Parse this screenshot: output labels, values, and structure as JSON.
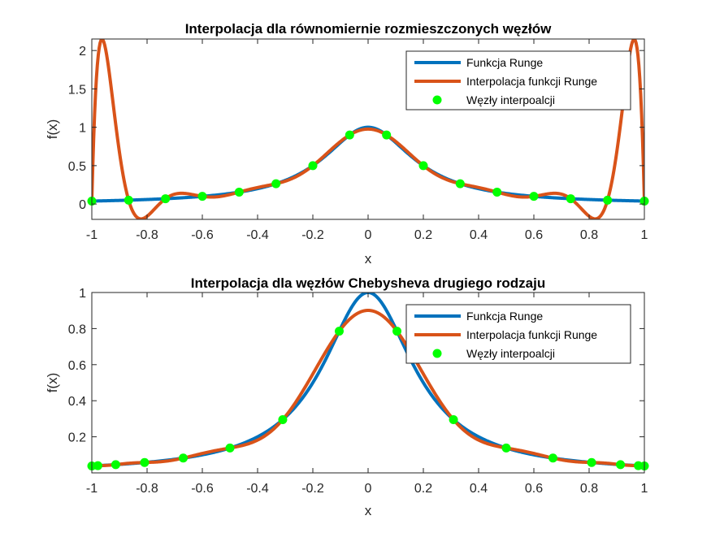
{
  "colors": {
    "runge": "#0072BD",
    "interp": "#D95319",
    "nodes": "#00FF00",
    "axes": "#262626",
    "background": "#FFFFFF"
  },
  "chart_data": [
    {
      "type": "line",
      "title": "Interpolacja dla równomiernie rozmieszczonych węzłów",
      "xlabel": "x",
      "ylabel": "f(x)",
      "xlim": [
        -1,
        1
      ],
      "ylim": [
        -0.2,
        2.15
      ],
      "xticks": [
        -1,
        -0.8,
        -0.6,
        -0.4,
        -0.2,
        0,
        0.2,
        0.4,
        0.6,
        0.8,
        1
      ],
      "xtick_labels": [
        "-1",
        "-0.8",
        "-0.6",
        "-0.4",
        "-0.2",
        "0",
        "0.2",
        "0.4",
        "0.6",
        "0.8",
        "1"
      ],
      "yticks": [
        0,
        0.5,
        1,
        1.5,
        2
      ],
      "ytick_labels": [
        "0",
        "0.5",
        "1",
        "1.5",
        "2"
      ],
      "grid": false,
      "legend_position": "top-right",
      "series": [
        {
          "name": "Funkcja Runge",
          "kind": "runge"
        },
        {
          "name": "Interpolacja funkcji Runge",
          "kind": "interp"
        },
        {
          "name": "Węzły interpoalcji",
          "kind": "nodes"
        }
      ],
      "nodes": {
        "x": [
          -1,
          -0.8667,
          -0.7333,
          -0.6,
          -0.4667,
          -0.3333,
          -0.2,
          -0.0667,
          0.0667,
          0.2,
          0.3333,
          0.4667,
          0.6,
          0.7333,
          0.8667,
          1
        ],
        "y": [
          0.0385,
          0.0505,
          0.0692,
          0.1,
          0.1552,
          0.2647,
          0.5,
          0.9,
          0.9,
          0.5,
          0.2647,
          0.1552,
          0.1,
          0.0692,
          0.0505,
          0.0385
        ]
      }
    },
    {
      "type": "line",
      "title": "Interpolacja dla węzłów Chebysheva drugiego rodzaju",
      "xlabel": "x",
      "ylabel": "f(x)",
      "xlim": [
        -1,
        1
      ],
      "ylim": [
        0,
        1
      ],
      "xticks": [
        -1,
        -0.8,
        -0.6,
        -0.4,
        -0.2,
        0,
        0.2,
        0.4,
        0.6,
        0.8,
        1
      ],
      "xtick_labels": [
        "-1",
        "-0.8",
        "-0.6",
        "-0.4",
        "-0.2",
        "0",
        "0.2",
        "0.4",
        "0.6",
        "0.8",
        "1"
      ],
      "yticks": [
        0.2,
        0.4,
        0.6,
        0.8,
        1
      ],
      "ytick_labels": [
        "0.2",
        "0.4",
        "0.6",
        "0.8",
        "1"
      ],
      "grid": false,
      "legend_position": "top-right",
      "series": [
        {
          "name": "Funkcja Runge",
          "kind": "runge"
        },
        {
          "name": "Interpolacja funkcji Runge",
          "kind": "interp"
        },
        {
          "name": "Węzły interpoalcji",
          "kind": "nodes"
        }
      ],
      "nodes": {
        "x": [
          -1,
          -0.9781,
          -0.9135,
          -0.809,
          -0.6691,
          -0.5,
          -0.309,
          -0.1045,
          0.1045,
          0.309,
          0.5,
          0.6691,
          0.809,
          0.9135,
          0.9781,
          1
        ],
        "y": [
          0.0385,
          0.0401,
          0.0458,
          0.0576,
          0.082,
          0.1379,
          0.2952,
          0.7856,
          0.7856,
          0.2952,
          0.1379,
          0.082,
          0.0576,
          0.0458,
          0.0401,
          0.0385
        ]
      }
    }
  ]
}
